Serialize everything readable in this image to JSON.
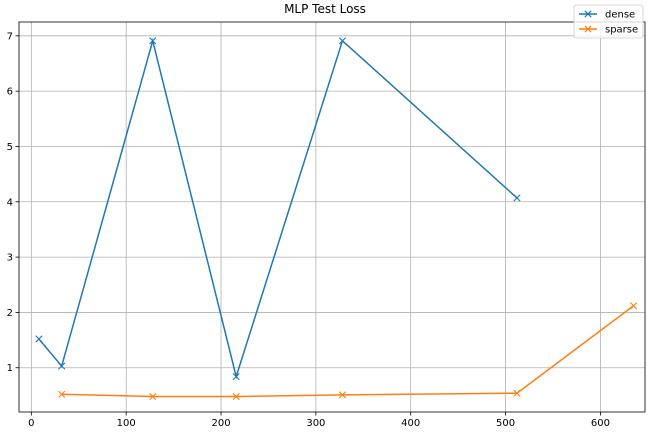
{
  "chart_data": {
    "type": "line",
    "title": "MLP Test Loss",
    "xlabel": "",
    "ylabel": "",
    "xlim": [
      -13,
      647
    ],
    "ylim": [
      0.2,
      7.25
    ],
    "xticks": [
      0,
      100,
      200,
      300,
      400,
      500,
      600
    ],
    "yticks": [
      1,
      2,
      3,
      4,
      5,
      6,
      7
    ],
    "grid": true,
    "legend": {
      "position": "top-right"
    },
    "series": [
      {
        "name": "dense",
        "color": "#1f77b4",
        "marker": "x",
        "x": [
          8,
          32,
          128,
          216,
          328,
          512
        ],
        "y": [
          1.52,
          1.03,
          6.91,
          0.84,
          6.91,
          4.07
        ]
      },
      {
        "name": "sparse",
        "color": "#ff7f0e",
        "marker": "x",
        "x": [
          32,
          128,
          216,
          328,
          512,
          635
        ],
        "y": [
          0.52,
          0.48,
          0.48,
          0.51,
          0.54,
          2.12
        ]
      }
    ]
  }
}
